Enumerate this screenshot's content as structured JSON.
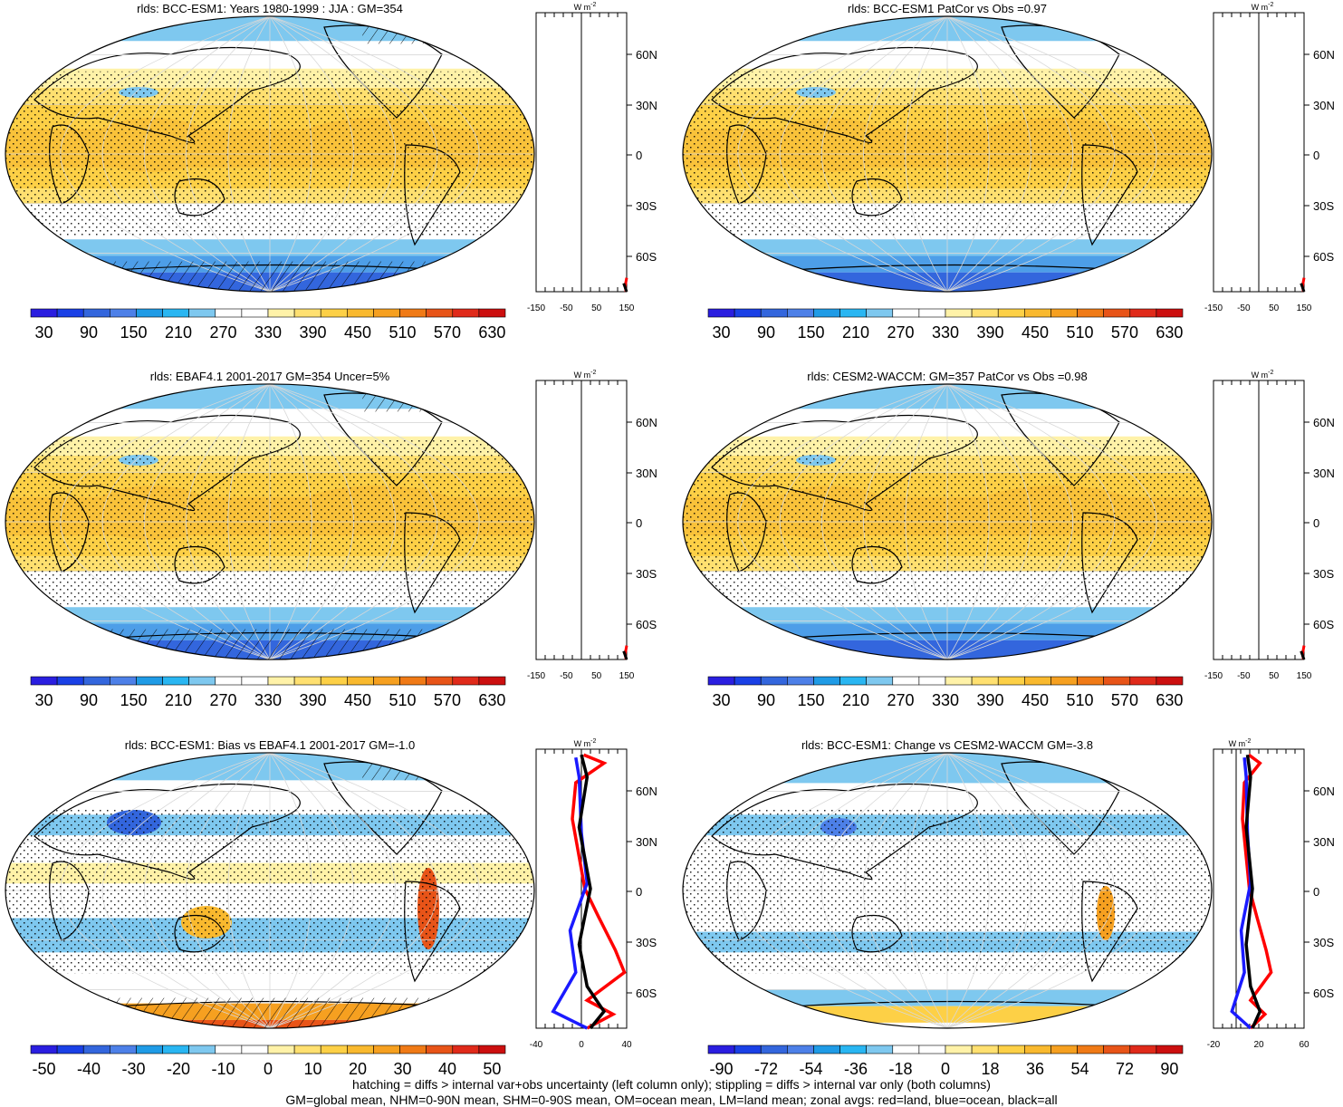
{
  "panels": [
    {
      "title": "rlds: BCC-ESM1: Years 1980-1999 : JJA : GM=354",
      "field": "climatology",
      "stippling": true,
      "hatching": true,
      "colorbar": {
        "labels": [
          "30",
          "90",
          "150",
          "210",
          "270",
          "330",
          "390",
          "450",
          "510",
          "570",
          "630"
        ],
        "scheme": "full"
      },
      "zonal": {
        "ticks": [
          "-150",
          "-50",
          "50",
          "150"
        ],
        "range": [
          -150,
          150
        ],
        "unit": "W m-2",
        "lines": [
          "red",
          "black"
        ]
      }
    },
    {
      "title": "rlds: BCC-ESM1 PatCor vs Obs =0.97",
      "field": "climatology",
      "stippling": true,
      "hatching": false,
      "colorbar": {
        "labels": [
          "30",
          "90",
          "150",
          "210",
          "270",
          "330",
          "390",
          "450",
          "510",
          "570",
          "630"
        ],
        "scheme": "full"
      },
      "zonal": {
        "ticks": [
          "-150",
          "-50",
          "50",
          "150"
        ],
        "range": [
          -150,
          150
        ],
        "unit": "W m-2",
        "lines": [
          "red",
          "black"
        ]
      }
    },
    {
      "title": "rlds: EBAF4.1 2001-2017 GM=354 Uncer=5%",
      "field": "climatology",
      "stippling": true,
      "hatching": true,
      "colorbar": {
        "labels": [
          "30",
          "90",
          "150",
          "210",
          "270",
          "330",
          "390",
          "450",
          "510",
          "570",
          "630"
        ],
        "scheme": "full"
      },
      "zonal": {
        "ticks": [
          "-150",
          "-50",
          "50",
          "150"
        ],
        "range": [
          -150,
          150
        ],
        "unit": "W m-2",
        "lines": [
          "red",
          "black"
        ]
      }
    },
    {
      "title": "rlds: CESM2-WACCM: GM=357 PatCor vs Obs =0.98",
      "field": "climatology",
      "stippling": true,
      "hatching": false,
      "colorbar": {
        "labels": [
          "30",
          "90",
          "150",
          "210",
          "270",
          "330",
          "390",
          "450",
          "510",
          "570",
          "630"
        ],
        "scheme": "full"
      },
      "zonal": {
        "ticks": [
          "-150",
          "-50",
          "50",
          "150"
        ],
        "range": [
          -150,
          150
        ],
        "unit": "W m-2",
        "lines": [
          "red",
          "black"
        ]
      }
    },
    {
      "title": "rlds: BCC-ESM1: Bias vs EBAF4.1 2001-2017 GM=-1.0",
      "field": "bias",
      "stippling": true,
      "hatching": true,
      "colorbar": {
        "labels": [
          "-50",
          "-40",
          "-30",
          "-20",
          "-10",
          "0",
          "10",
          "20",
          "30",
          "40",
          "50"
        ],
        "scheme": "diff"
      },
      "zonal": {
        "ticks": [
          "-40",
          "0",
          "40"
        ],
        "range": [
          -40,
          40
        ],
        "unit": "W m-2",
        "lines": [
          "red",
          "blue",
          "black"
        ]
      }
    },
    {
      "title": "rlds: BCC-ESM1: Change vs CESM2-WACCM GM=-3.8",
      "field": "change",
      "stippling": true,
      "hatching": false,
      "colorbar": {
        "labels": [
          "-90",
          "-72",
          "-54",
          "-36",
          "-18",
          "0",
          "18",
          "36",
          "54",
          "72",
          "90"
        ],
        "scheme": "diff"
      },
      "zonal": {
        "ticks": [
          "-20",
          "20",
          "60"
        ],
        "range": [
          -20,
          60
        ],
        "unit": "W m-2",
        "lines": [
          "red",
          "blue",
          "black"
        ]
      }
    }
  ],
  "lat_labels": [
    "60N",
    "30N",
    "0",
    "30S",
    "60S"
  ],
  "footnotes": [
    "hatching = diffs > internal var+obs uncertainty (left column only); stippling = diffs > internal var only (both columns)",
    "GM=global mean, NHM=0-90N mean, SHM=0-90S mean, OM=ocean mean, LM=land mean; zonal avgs: red=land, blue=ocean, black=all"
  ],
  "colors": {
    "full": [
      "#2a1ee0",
      "#1a40e6",
      "#3366dd",
      "#4d80e8",
      "#1f9be6",
      "#29b6f2",
      "#7ec8ef",
      "#ffffff",
      "#ffffff",
      "#fff2a8",
      "#ffe070",
      "#fdd046",
      "#f9b92e",
      "#f6a020",
      "#f07a16",
      "#e85418",
      "#e02a1a",
      "#cc0f0f"
    ],
    "diff": [
      "#2a1ee0",
      "#1a40e6",
      "#3366dd",
      "#4d80e8",
      "#1f9be6",
      "#29b6f2",
      "#7ec8ef",
      "#ffffff",
      "#ffffff",
      "#fff2a8",
      "#ffe070",
      "#fdd046",
      "#f9b92e",
      "#f6a020",
      "#f07a16",
      "#e85418",
      "#e02a1a",
      "#cc0f0f"
    ],
    "zonal_red": "#ff0000",
    "zonal_blue": "#1a1aff",
    "zonal_black": "#000000"
  },
  "chart_data": [
    {
      "type": "heatmap",
      "title": "rlds: BCC-ESM1: Years 1980-1999 : JJA : GM=354",
      "colorbar_ticks": [
        30,
        90,
        150,
        210,
        270,
        330,
        390,
        450,
        510,
        570,
        630
      ],
      "latitudes": [
        "60N",
        "30N",
        "0",
        "30S",
        "60S"
      ]
    },
    {
      "type": "heatmap",
      "title": "rlds: BCC-ESM1 PatCor vs Obs =0.97",
      "colorbar_ticks": [
        30,
        90,
        150,
        210,
        270,
        330,
        390,
        450,
        510,
        570,
        630
      ],
      "latitudes": [
        "60N",
        "30N",
        "0",
        "30S",
        "60S"
      ]
    },
    {
      "type": "heatmap",
      "title": "rlds: EBAF4.1 2001-2017 GM=354 Uncer=5%",
      "colorbar_ticks": [
        30,
        90,
        150,
        210,
        270,
        330,
        390,
        450,
        510,
        570,
        630
      ],
      "latitudes": [
        "60N",
        "30N",
        "0",
        "30S",
        "60S"
      ]
    },
    {
      "type": "heatmap",
      "title": "rlds: CESM2-WACCM: GM=357 PatCor vs Obs =0.98",
      "colorbar_ticks": [
        30,
        90,
        150,
        210,
        270,
        330,
        390,
        450,
        510,
        570,
        630
      ],
      "latitudes": [
        "60N",
        "30N",
        "0",
        "30S",
        "60S"
      ]
    },
    {
      "type": "heatmap",
      "title": "rlds: BCC-ESM1: Bias vs EBAF4.1 2001-2017 GM=-1.0",
      "colorbar_ticks": [
        -50,
        -40,
        -30,
        -20,
        -10,
        0,
        10,
        20,
        30,
        40,
        50
      ],
      "latitudes": [
        "60N",
        "30N",
        "0",
        "30S",
        "60S"
      ]
    },
    {
      "type": "heatmap",
      "title": "rlds: BCC-ESM1: Change vs CESM2-WACCM GM=-3.8",
      "colorbar_ticks": [
        -90,
        -72,
        -54,
        -36,
        -18,
        0,
        18,
        36,
        54,
        72,
        90
      ],
      "latitudes": [
        "60N",
        "30N",
        "0",
        "30S",
        "60S"
      ]
    }
  ]
}
